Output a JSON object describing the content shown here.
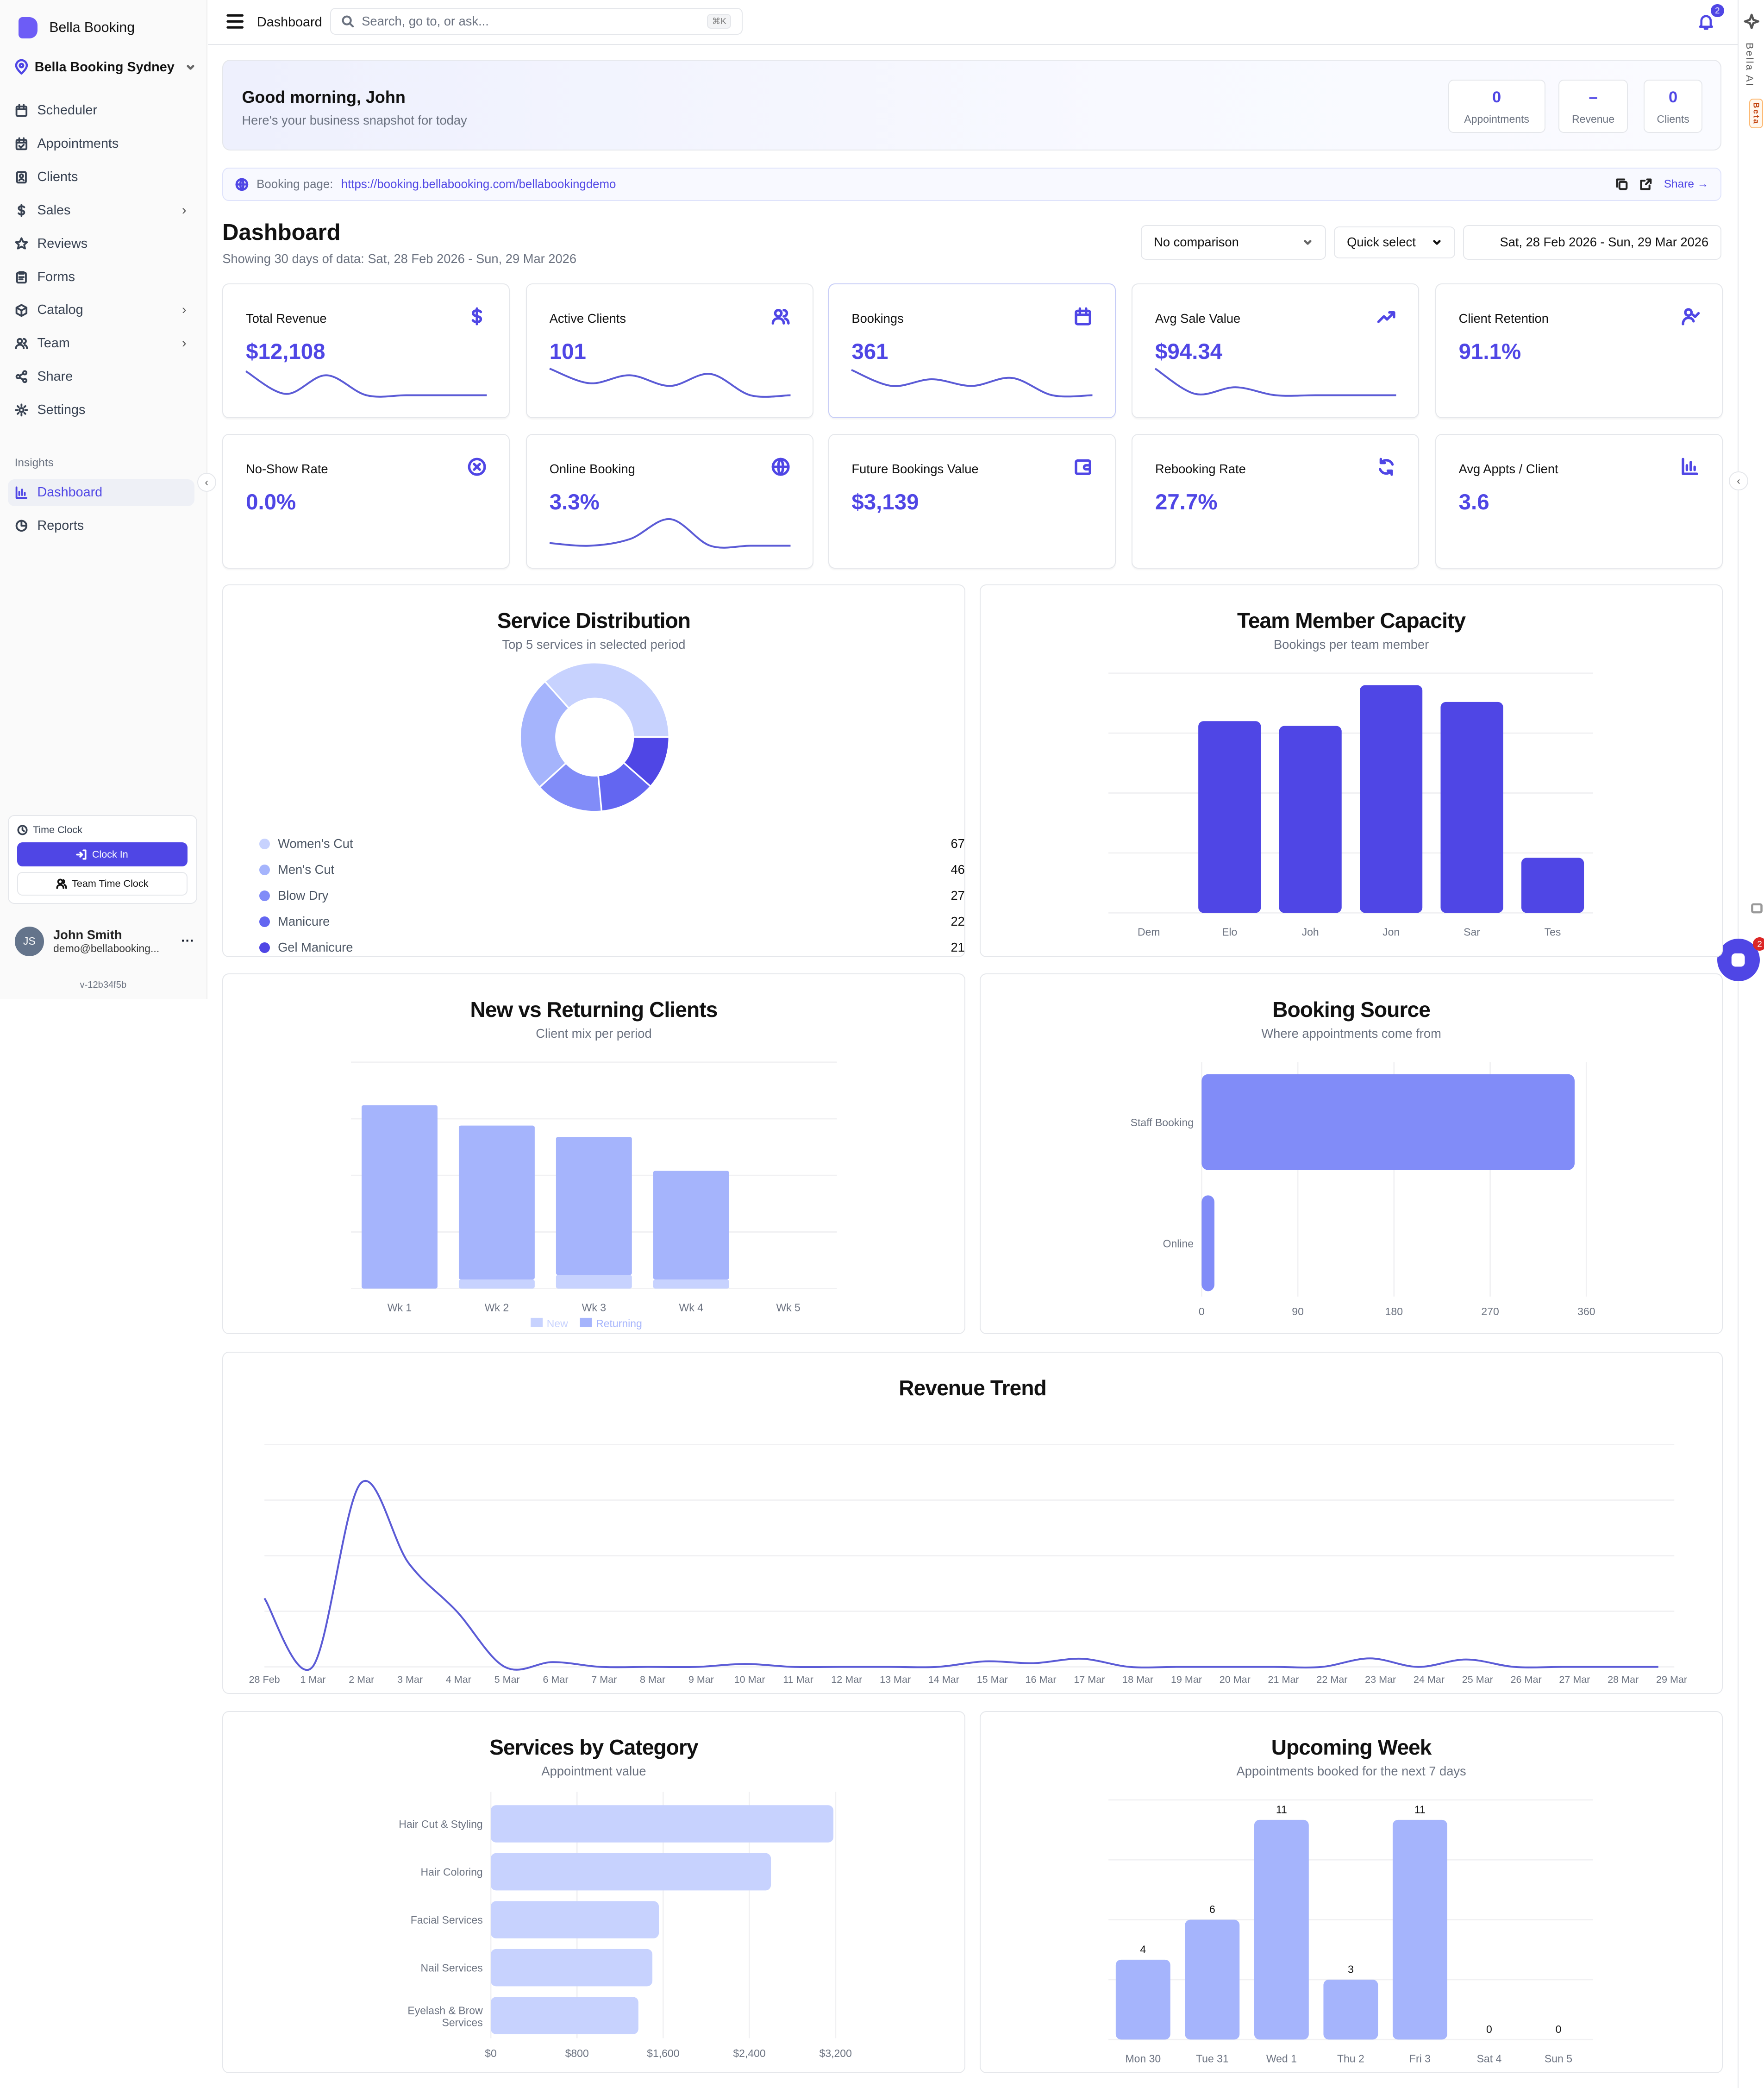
{
  "sidebar": {
    "brand": "Bella Booking",
    "location": "Bella Booking Sydney",
    "items": [
      {
        "label": "Scheduler",
        "icon": "calendar-icon"
      },
      {
        "label": "Appointments",
        "icon": "calendar-check-icon"
      },
      {
        "label": "Clients",
        "icon": "contact-icon"
      },
      {
        "label": "Sales",
        "icon": "dollar-icon",
        "has_children": true
      },
      {
        "label": "Reviews",
        "icon": "star-icon"
      },
      {
        "label": "Forms",
        "icon": "clipboard-icon"
      },
      {
        "label": "Catalog",
        "icon": "package-icon",
        "has_children": true
      },
      {
        "label": "Team",
        "icon": "users-icon",
        "has_children": true
      },
      {
        "label": "Share",
        "icon": "share-icon"
      },
      {
        "label": "Settings",
        "icon": "gear-icon"
      }
    ],
    "section_label": "Insights",
    "insights": [
      {
        "label": "Dashboard",
        "icon": "bar-chart-icon",
        "active": true
      },
      {
        "label": "Reports",
        "icon": "pie-chart-icon"
      }
    ],
    "time_clock": {
      "title": "Time Clock",
      "clock_in": "Clock In",
      "team_time_clock": "Team Time Clock"
    },
    "user": {
      "initials": "JS",
      "name": "John Smith",
      "email": "demo@bellabooking..."
    },
    "version": "v-12b34f5b"
  },
  "header": {
    "title": "Dashboard",
    "search_placeholder": "Search, go to, or ask...",
    "search_shortcut": "⌘K",
    "notifications": "2"
  },
  "rail": {
    "label": "Bella AI",
    "badge": "Beta",
    "chat_badge": "2"
  },
  "greeting": {
    "title": "Good morning, John",
    "subtitle": "Here's your business snapshot for today",
    "stats": [
      {
        "value": "0",
        "label": "Appointments"
      },
      {
        "value": "–",
        "label": "Revenue"
      },
      {
        "value": "0",
        "label": "Clients"
      }
    ]
  },
  "booking_page": {
    "label": "Booking page:",
    "url": "https://booking.bellabooking.com/bellabookingdemo",
    "share": "Share →"
  },
  "dashboard": {
    "title": "Dashboard",
    "subtitle": "Showing 30 days of data: Sat, 28 Feb 2026 - Sun, 29 Mar 2026",
    "comparison": "No comparison",
    "quick_select": "Quick select",
    "date_range": "Sat, 28 Feb 2026 - Sun, 29 Mar 2026"
  },
  "kpis": [
    {
      "title": "Total Revenue",
      "value": "$12,108",
      "icon": "dollar-icon",
      "spark": [
        0.9,
        0.05,
        0.75,
        0,
        0,
        0,
        0
      ]
    },
    {
      "title": "Active Clients",
      "value": "101",
      "icon": "users-icon",
      "spark": [
        1,
        0.45,
        0.75,
        0.35,
        0.8,
        0,
        0
      ]
    },
    {
      "title": "Bookings",
      "value": "361",
      "icon": "calendar-icon",
      "spark": [
        0.95,
        0.35,
        0.6,
        0.35,
        0.65,
        0,
        0
      ],
      "selected": true
    },
    {
      "title": "Avg Sale Value",
      "value": "$94.34",
      "icon": "trending-up-icon",
      "spark": [
        1,
        0.05,
        0.3,
        0,
        0,
        0,
        0
      ]
    },
    {
      "title": "Client Retention",
      "value": "91.1%",
      "icon": "user-check-icon"
    },
    {
      "title": "No-Show Rate",
      "value": "0.0%",
      "icon": "x-circle-icon"
    },
    {
      "title": "Online Booking",
      "value": "3.3%",
      "icon": "globe-icon",
      "spark": [
        0.1,
        0,
        0.25,
        1,
        0,
        0,
        0
      ]
    },
    {
      "title": "Future Bookings Value",
      "value": "$3,139",
      "icon": "wallet-icon"
    },
    {
      "title": "Rebooking Rate",
      "value": "27.7%",
      "icon": "refresh-icon"
    },
    {
      "title": "Avg Appts / Client",
      "value": "3.6",
      "icon": "bar-chart-icon"
    }
  ],
  "colors": {
    "accent": "#4f46e5",
    "palette": [
      "#c7d2fe",
      "#a5b4fc",
      "#818cf8",
      "#6366f1",
      "#4f46e5"
    ]
  },
  "chart_data": [
    {
      "id": "service_distribution",
      "type": "pie",
      "title": "Service Distribution",
      "subtitle": "Top 5 services in selected period",
      "categories": [
        "Women's Cut",
        "Men's Cut",
        "Blow Dry",
        "Manicure",
        "Gel Manicure"
      ],
      "values": [
        67,
        46,
        27,
        22,
        21
      ]
    },
    {
      "id": "team_capacity",
      "type": "bar",
      "title": "Team Member Capacity",
      "subtitle": "Bookings per team member",
      "categories": [
        "Dem",
        "Elo",
        "Joh",
        "Jon",
        "Sar",
        "Tes"
      ],
      "values": [
        0,
        80,
        78,
        95,
        88,
        23
      ],
      "ylim": [
        0,
        100
      ],
      "grid": true
    },
    {
      "id": "new_vs_returning",
      "type": "bar",
      "stacked": true,
      "title": "New vs Returning Clients",
      "subtitle": "Client mix per period",
      "categories": [
        "Wk 1",
        "Wk 2",
        "Wk 3",
        "Wk 4",
        "Wk 5"
      ],
      "series": [
        {
          "name": "New",
          "values": [
            0,
            4,
            6,
            4,
            0
          ]
        },
        {
          "name": "Returning",
          "values": [
            81,
            68,
            61,
            48,
            0
          ]
        }
      ],
      "ylim": [
        0,
        100
      ],
      "grid": true,
      "legend": "bottom"
    },
    {
      "id": "booking_source",
      "type": "bar",
      "orientation": "horizontal",
      "title": "Booking Source",
      "subtitle": "Where appointments come from",
      "categories": [
        "Staff Booking",
        "Online"
      ],
      "values": [
        349,
        12
      ],
      "xticks": [
        "0",
        "90",
        "180",
        "270",
        "360"
      ],
      "xlim": [
        0,
        360
      ],
      "grid": true
    },
    {
      "id": "revenue_trend",
      "type": "line",
      "title": "Revenue Trend",
      "x": [
        "28 Feb",
        "1 Mar",
        "2 Mar",
        "3 Mar",
        "4 Mar",
        "5 Mar",
        "6 Mar",
        "7 Mar",
        "8 Mar",
        "9 Mar",
        "10 Mar",
        "11 Mar",
        "12 Mar",
        "13 Mar",
        "14 Mar",
        "15 Mar",
        "16 Mar",
        "17 Mar",
        "18 Mar",
        "19 Mar",
        "20 Mar",
        "21 Mar",
        "22 Mar",
        "23 Mar",
        "24 Mar",
        "25 Mar",
        "26 Mar",
        "27 Mar",
        "28 Mar",
        "29 Mar"
      ],
      "values": [
        1850,
        0,
        4950,
        2800,
        1500,
        0,
        130,
        0,
        0,
        0,
        80,
        0,
        0,
        0,
        0,
        150,
        100,
        220,
        0,
        0,
        0,
        0,
        0,
        230,
        0,
        200,
        0,
        0,
        0,
        0
      ],
      "ylim": [
        0,
        6000
      ],
      "grid": true
    },
    {
      "id": "services_by_category",
      "type": "bar",
      "orientation": "horizontal",
      "title": "Services by Category",
      "subtitle": "Appointment value",
      "categories": [
        "Hair Cut & Styling",
        "Hair Coloring",
        "Facial Services",
        "Nail Services",
        "Eyelash & Brow Services"
      ],
      "values": [
        3180,
        2600,
        1560,
        1500,
        1370
      ],
      "xticks": [
        "$0",
        "$800",
        "$1,600",
        "$2,400",
        "$3,200"
      ],
      "xlim": [
        0,
        3200
      ],
      "grid": true
    },
    {
      "id": "upcoming_week",
      "type": "bar",
      "title": "Upcoming Week",
      "subtitle": "Appointments booked for the next 7 days",
      "categories": [
        "Mon 30",
        "Tue 31",
        "Wed 1",
        "Thu 2",
        "Fri 3",
        "Sat 4",
        "Sun 5"
      ],
      "values": [
        4,
        6,
        11,
        3,
        11,
        0,
        0
      ],
      "ylim": [
        0,
        12
      ],
      "grid": true,
      "data_labels": true
    }
  ]
}
